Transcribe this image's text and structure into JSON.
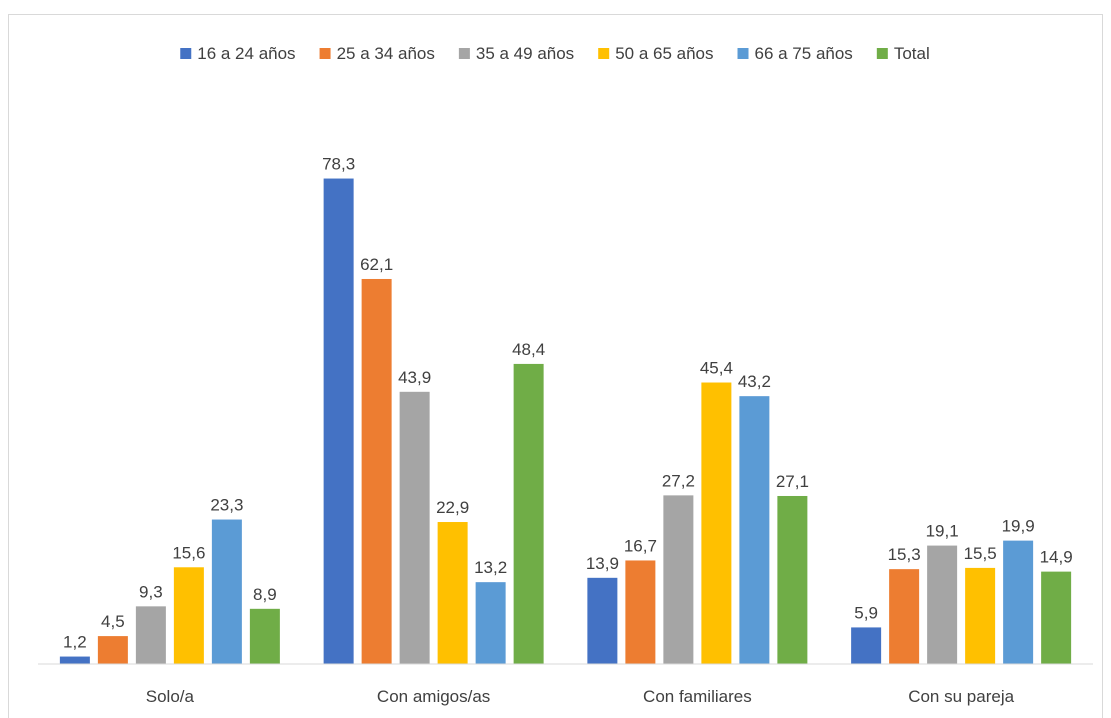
{
  "chart_data": {
    "type": "bar",
    "categories": [
      "Solo/a",
      "Con amigos/as",
      "Con familiares",
      "Con su pareja"
    ],
    "series": [
      {
        "name": "16 a 24 años",
        "color": "#4472c4",
        "values": [
          1.2,
          78.3,
          13.9,
          5.9
        ],
        "labels": [
          "1,2",
          "78,3",
          "13,9",
          "5,9"
        ]
      },
      {
        "name": "25 a 34 años",
        "color": "#ed7d31",
        "values": [
          4.5,
          62.1,
          16.7,
          15.3
        ],
        "labels": [
          "4,5",
          "62,1",
          "16,7",
          "15,3"
        ]
      },
      {
        "name": "35 a 49 años",
        "color": "#a5a5a5",
        "values": [
          9.3,
          43.9,
          27.2,
          19.1
        ],
        "labels": [
          "9,3",
          "43,9",
          "27,2",
          "19,1"
        ]
      },
      {
        "name": "50 a 65 años",
        "color": "#ffc000",
        "values": [
          15.6,
          22.9,
          45.4,
          15.5
        ],
        "labels": [
          "15,6",
          "22,9",
          "45,4",
          "15,5"
        ]
      },
      {
        "name": "66 a 75 años",
        "color": "#5b9bd5",
        "values": [
          23.3,
          13.2,
          43.2,
          19.9
        ],
        "labels": [
          "23,3",
          "13,2",
          "43,2",
          "19,9"
        ]
      },
      {
        "name": "Total",
        "color": "#70ad47",
        "values": [
          8.9,
          48.4,
          27.1,
          14.9
        ],
        "labels": [
          "8,9",
          "48,4",
          "27,1",
          "14,9"
        ]
      }
    ],
    "ylim": [
      0,
      80
    ],
    "grid": false,
    "legend_position": "top"
  }
}
